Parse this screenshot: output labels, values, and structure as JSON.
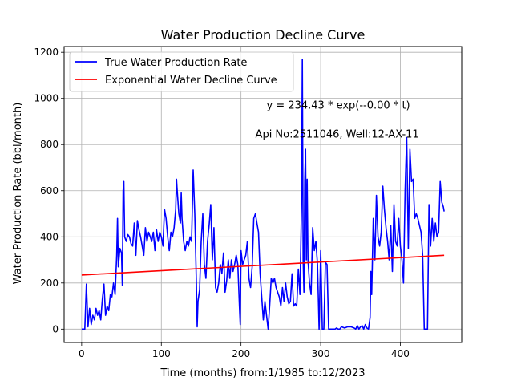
{
  "chart_data": {
    "type": "line",
    "title": "Water Production Decline Curve",
    "xlabel": "Time (months) from:1/1985 to:12/2023",
    "ylabel": "Water Production Rate (bbl/month)",
    "xlim": [
      -22,
      477
    ],
    "ylim": [
      -58,
      1225
    ],
    "xticks": [
      0,
      100,
      200,
      300,
      400
    ],
    "yticks": [
      0,
      200,
      400,
      600,
      800,
      1000,
      1200
    ],
    "grid": true,
    "legend_position": "top-left",
    "annotations": [
      {
        "text": "y = 234.43 * exp(--0.00 * t)",
        "x": 232,
        "y": 955
      },
      {
        "text": "Api No:2511046, Well:12-AX-11",
        "x": 218,
        "y": 830
      }
    ],
    "series": [
      {
        "name": "True Water Production Rate",
        "color": "#0000ff",
        "points": [
          [
            0,
            0
          ],
          [
            4,
            0
          ],
          [
            6,
            195
          ],
          [
            8,
            10
          ],
          [
            10,
            90
          ],
          [
            12,
            20
          ],
          [
            14,
            60
          ],
          [
            16,
            40
          ],
          [
            18,
            90
          ],
          [
            20,
            60
          ],
          [
            22,
            80
          ],
          [
            24,
            40
          ],
          [
            26,
            130
          ],
          [
            28,
            195
          ],
          [
            30,
            60
          ],
          [
            32,
            100
          ],
          [
            34,
            80
          ],
          [
            36,
            150
          ],
          [
            38,
            140
          ],
          [
            40,
            200
          ],
          [
            42,
            150
          ],
          [
            44,
            320
          ],
          [
            45,
            480
          ],
          [
            46,
            270
          ],
          [
            48,
            350
          ],
          [
            50,
            330
          ],
          [
            51,
            190
          ],
          [
            52,
            600
          ],
          [
            53,
            640
          ],
          [
            54,
            400
          ],
          [
            56,
            380
          ],
          [
            58,
            410
          ],
          [
            60,
            400
          ],
          [
            62,
            370
          ],
          [
            64,
            360
          ],
          [
            66,
            460
          ],
          [
            68,
            320
          ],
          [
            70,
            470
          ],
          [
            72,
            430
          ],
          [
            74,
            400
          ],
          [
            76,
            360
          ],
          [
            78,
            320
          ],
          [
            80,
            440
          ],
          [
            82,
            380
          ],
          [
            84,
            420
          ],
          [
            86,
            400
          ],
          [
            88,
            380
          ],
          [
            90,
            420
          ],
          [
            92,
            340
          ],
          [
            94,
            430
          ],
          [
            96,
            380
          ],
          [
            98,
            420
          ],
          [
            100,
            400
          ],
          [
            102,
            360
          ],
          [
            104,
            520
          ],
          [
            106,
            480
          ],
          [
            108,
            400
          ],
          [
            110,
            340
          ],
          [
            112,
            420
          ],
          [
            114,
            400
          ],
          [
            116,
            440
          ],
          [
            118,
            520
          ],
          [
            119,
            650
          ],
          [
            120,
            600
          ],
          [
            122,
            500
          ],
          [
            124,
            460
          ],
          [
            125,
            590
          ],
          [
            126,
            480
          ],
          [
            128,
            380
          ],
          [
            130,
            340
          ],
          [
            132,
            380
          ],
          [
            134,
            360
          ],
          [
            136,
            400
          ],
          [
            138,
            380
          ],
          [
            140,
            690
          ],
          [
            142,
            500
          ],
          [
            144,
            200
          ],
          [
            145,
            10
          ],
          [
            146,
            120
          ],
          [
            148,
            170
          ],
          [
            150,
            380
          ],
          [
            152,
            500
          ],
          [
            154,
            280
          ],
          [
            156,
            220
          ],
          [
            158,
            380
          ],
          [
            160,
            450
          ],
          [
            162,
            540
          ],
          [
            164,
            300
          ],
          [
            166,
            440
          ],
          [
            168,
            180
          ],
          [
            170,
            160
          ],
          [
            172,
            200
          ],
          [
            174,
            280
          ],
          [
            176,
            240
          ],
          [
            178,
            330
          ],
          [
            180,
            160
          ],
          [
            182,
            210
          ],
          [
            184,
            300
          ],
          [
            186,
            220
          ],
          [
            188,
            300
          ],
          [
            190,
            250
          ],
          [
            192,
            280
          ],
          [
            194,
            320
          ],
          [
            196,
            280
          ],
          [
            198,
            100
          ],
          [
            199,
            20
          ],
          [
            200,
            340
          ],
          [
            202,
            280
          ],
          [
            204,
            300
          ],
          [
            206,
            320
          ],
          [
            208,
            380
          ],
          [
            210,
            220
          ],
          [
            212,
            180
          ],
          [
            214,
            270
          ],
          [
            216,
            480
          ],
          [
            218,
            500
          ],
          [
            220,
            460
          ],
          [
            222,
            420
          ],
          [
            224,
            240
          ],
          [
            226,
            140
          ],
          [
            228,
            40
          ],
          [
            230,
            120
          ],
          [
            232,
            60
          ],
          [
            234,
            0
          ],
          [
            236,
            100
          ],
          [
            238,
            220
          ],
          [
            240,
            200
          ],
          [
            242,
            220
          ],
          [
            244,
            180
          ],
          [
            246,
            160
          ],
          [
            248,
            140
          ],
          [
            250,
            100
          ],
          [
            252,
            180
          ],
          [
            254,
            120
          ],
          [
            256,
            200
          ],
          [
            258,
            140
          ],
          [
            260,
            110
          ],
          [
            262,
            120
          ],
          [
            264,
            240
          ],
          [
            266,
            100
          ],
          [
            268,
            110
          ],
          [
            270,
            100
          ],
          [
            272,
            260
          ],
          [
            274,
            150
          ],
          [
            276,
            540
          ],
          [
            277,
            1170
          ],
          [
            278,
            300
          ],
          [
            279,
            160
          ],
          [
            280,
            640
          ],
          [
            281,
            780
          ],
          [
            282,
            300
          ],
          [
            283,
            650
          ],
          [
            284,
            300
          ],
          [
            286,
            200
          ],
          [
            288,
            150
          ],
          [
            290,
            440
          ],
          [
            292,
            340
          ],
          [
            294,
            380
          ],
          [
            296,
            280
          ],
          [
            298,
            0
          ],
          [
            300,
            340
          ],
          [
            302,
            0
          ],
          [
            304,
            0
          ],
          [
            306,
            290
          ],
          [
            308,
            280
          ],
          [
            310,
            0
          ],
          [
            312,
            0
          ],
          [
            314,
            0
          ],
          [
            316,
            0
          ],
          [
            318,
            0
          ],
          [
            320,
            5
          ],
          [
            322,
            0
          ],
          [
            324,
            0
          ],
          [
            326,
            10
          ],
          [
            330,
            5
          ],
          [
            334,
            10
          ],
          [
            338,
            10
          ],
          [
            342,
            5
          ],
          [
            344,
            0
          ],
          [
            346,
            15
          ],
          [
            348,
            0
          ],
          [
            350,
            10
          ],
          [
            352,
            15
          ],
          [
            354,
            0
          ],
          [
            356,
            20
          ],
          [
            358,
            5
          ],
          [
            360,
            0
          ],
          [
            362,
            50
          ],
          [
            363,
            250
          ],
          [
            364,
            150
          ],
          [
            366,
            480
          ],
          [
            368,
            300
          ],
          [
            370,
            580
          ],
          [
            372,
            400
          ],
          [
            374,
            360
          ],
          [
            376,
            420
          ],
          [
            378,
            620
          ],
          [
            380,
            520
          ],
          [
            382,
            440
          ],
          [
            384,
            380
          ],
          [
            386,
            300
          ],
          [
            388,
            450
          ],
          [
            390,
            250
          ],
          [
            392,
            540
          ],
          [
            394,
            380
          ],
          [
            396,
            360
          ],
          [
            398,
            480
          ],
          [
            400,
            360
          ],
          [
            402,
            300
          ],
          [
            404,
            200
          ],
          [
            406,
            600
          ],
          [
            408,
            830
          ],
          [
            410,
            350
          ],
          [
            412,
            780
          ],
          [
            414,
            640
          ],
          [
            416,
            650
          ],
          [
            418,
            480
          ],
          [
            420,
            500
          ],
          [
            422,
            480
          ],
          [
            424,
            450
          ],
          [
            426,
            420
          ],
          [
            428,
            320
          ],
          [
            430,
            0
          ],
          [
            432,
            0
          ],
          [
            434,
            0
          ],
          [
            436,
            540
          ],
          [
            438,
            360
          ],
          [
            440,
            480
          ],
          [
            442,
            380
          ],
          [
            444,
            460
          ],
          [
            446,
            400
          ],
          [
            448,
            420
          ],
          [
            450,
            640
          ],
          [
            452,
            550
          ],
          [
            454,
            530
          ],
          [
            455,
            510
          ]
        ]
      },
      {
        "name": "Exponential Water Decline Curve",
        "color": "#ff0000",
        "points": [
          [
            0,
            234.43
          ],
          [
            455,
            320
          ]
        ]
      }
    ]
  }
}
